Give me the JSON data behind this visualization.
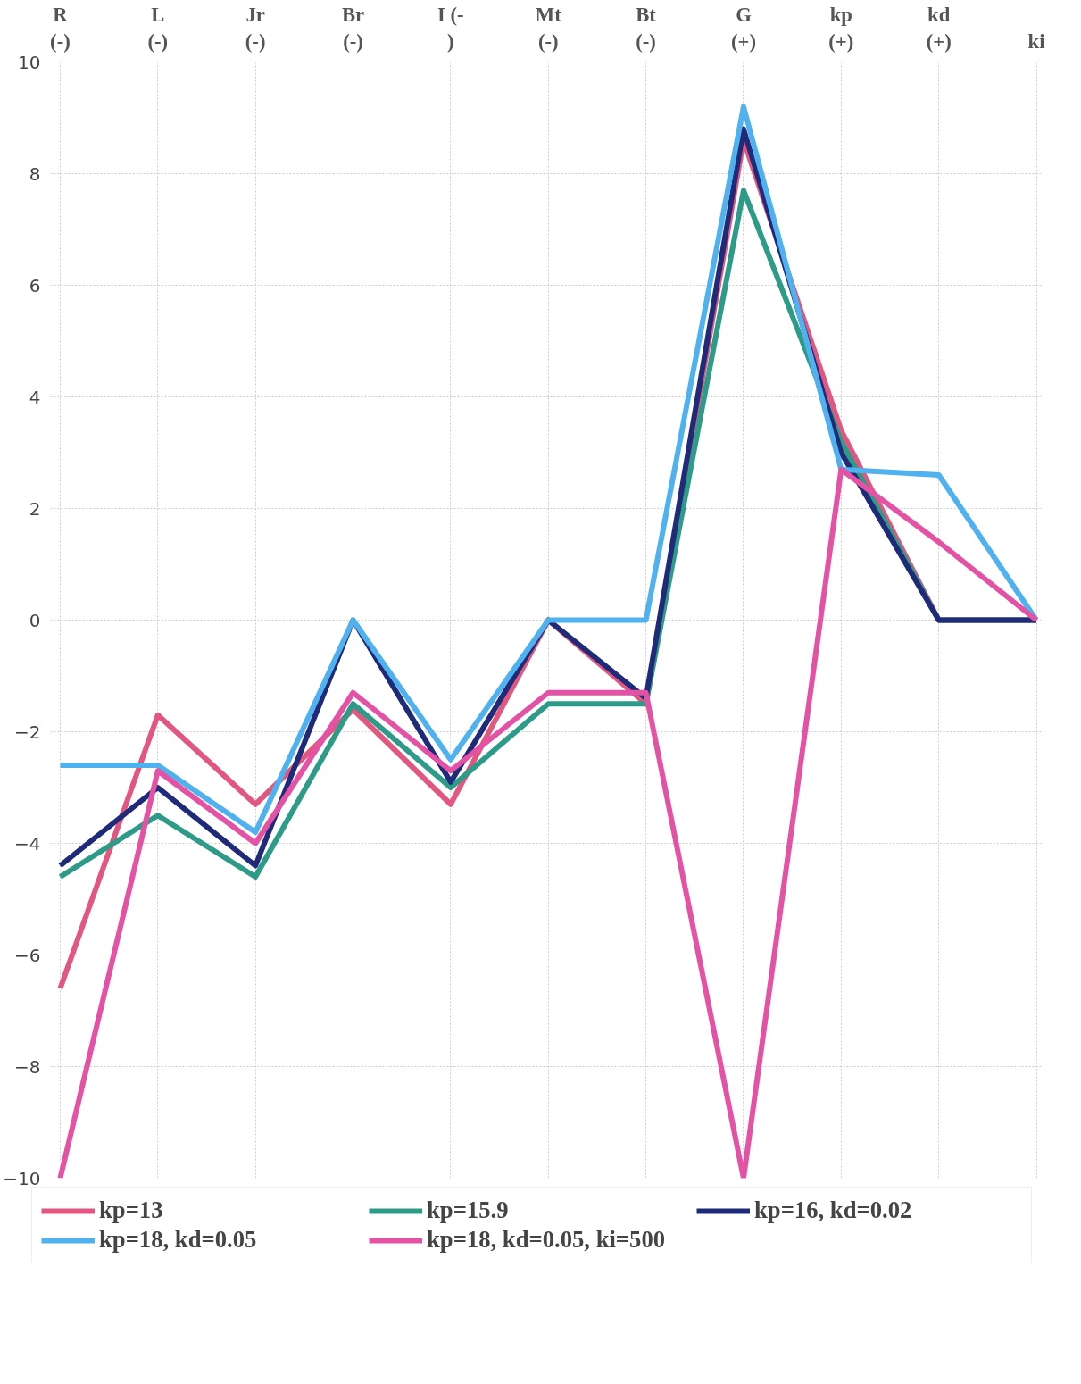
{
  "chart_data": {
    "type": "line",
    "categories": [
      "R\n(-)",
      "L\n(-)",
      "Jr\n(-)",
      "Br\n(-)",
      "I (-\n)",
      "Mt\n(-)",
      "Bt\n(-)",
      "G\n(+)",
      "kp\n(+)",
      "kd\n(+)",
      "ki"
    ],
    "series": [
      {
        "name": "kp=13",
        "color": "#e2577f",
        "values": [
          -6.6,
          -1.7,
          -3.3,
          -1.6,
          -3.3,
          0,
          -1.5,
          8.6,
          3.4,
          0,
          0
        ]
      },
      {
        "name": "kp=15.9",
        "color": "#2e9a88",
        "values": [
          -4.6,
          -3.5,
          -4.6,
          -1.5,
          -3.0,
          -1.5,
          -1.5,
          7.7,
          3.2,
          0,
          0
        ]
      },
      {
        "name": "kp=16, kd=0.02",
        "color": "#1f2a78",
        "values": [
          -4.4,
          -3.0,
          -4.4,
          0,
          -2.9,
          0,
          -1.4,
          8.8,
          3.0,
          0,
          0
        ]
      },
      {
        "name": "kp=18, kd=0.05",
        "color": "#4fb2ee",
        "values": [
          -2.6,
          -2.6,
          -3.8,
          0,
          -2.5,
          0,
          0,
          9.2,
          2.7,
          2.6,
          0
        ]
      },
      {
        "name": "kp=18, kd=0.05, ki=500",
        "color": "#e452a6",
        "values": [
          -10,
          -2.7,
          -4.0,
          -1.3,
          -2.7,
          -1.3,
          -1.3,
          -10,
          2.7,
          1.4,
          0
        ]
      }
    ],
    "ylim": [
      -10,
      10
    ],
    "yticks": [
      -10,
      -8,
      -6,
      -4,
      -2,
      0,
      2,
      4,
      6,
      8,
      10
    ],
    "grid": true,
    "legend": "bottom"
  }
}
